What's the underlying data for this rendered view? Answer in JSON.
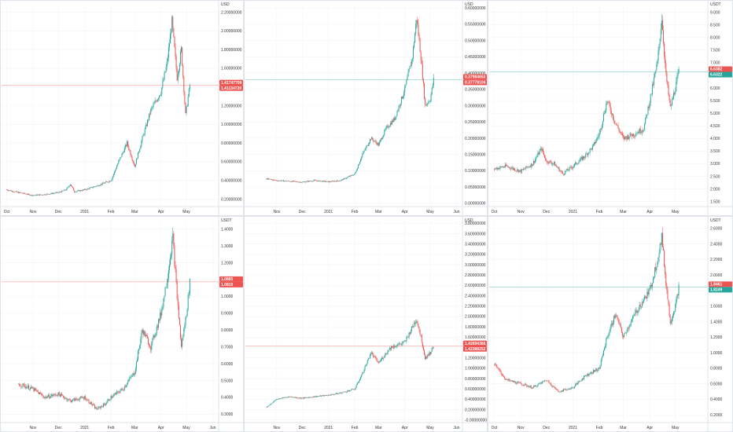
{
  "colors": {
    "up": "#26a69a",
    "down": "#ef5350",
    "tag_red": "#ef5350",
    "tag_green": "#26a69a",
    "divider": "#e0e3eb",
    "grid": "#f3f4f7"
  },
  "chart_data": [
    {
      "type": "candlestick",
      "unit": "USD",
      "y_ticks": [
        "0.20000000",
        "0.40000000",
        "0.60000000",
        "0.80000000",
        "1.00000000",
        "1.20000000",
        "1.40000000",
        "1.60000000",
        "1.80000000",
        "2.00000000",
        "2.20000000"
      ],
      "ylim": [
        0.12,
        2.28
      ],
      "x_ticks": [
        "Oct",
        "Nov",
        "Dec",
        "2021",
        "Feb",
        "Mar",
        "Apr",
        "May"
      ],
      "price_tags": [
        {
          "value": 1.41747709,
          "label": "1.41747709",
          "color": "red"
        },
        {
          "value": 1.4113472,
          "label": "1.41134720",
          "color": "red"
        }
      ],
      "line_color": "red",
      "series": [
        {
          "date": "2020-10-01",
          "close": 0.3
        },
        {
          "date": "2020-10-15",
          "close": 0.27
        },
        {
          "date": "2020-11-01",
          "close": 0.24
        },
        {
          "date": "2020-11-15",
          "close": 0.25
        },
        {
          "date": "2020-12-01",
          "close": 0.27
        },
        {
          "date": "2020-12-10",
          "close": 0.3
        },
        {
          "date": "2020-12-15",
          "close": 0.36
        },
        {
          "date": "2020-12-20",
          "close": 0.28
        },
        {
          "date": "2021-01-01",
          "close": 0.3
        },
        {
          "date": "2021-01-15",
          "close": 0.34
        },
        {
          "date": "2021-02-01",
          "close": 0.4
        },
        {
          "date": "2021-02-10",
          "close": 0.6
        },
        {
          "date": "2021-02-20",
          "close": 0.8
        },
        {
          "date": "2021-03-01",
          "close": 0.55
        },
        {
          "date": "2021-03-10",
          "close": 0.85
        },
        {
          "date": "2021-03-20",
          "close": 1.15
        },
        {
          "date": "2021-04-01",
          "close": 1.35
        },
        {
          "date": "2021-04-08",
          "close": 1.65
        },
        {
          "date": "2021-04-14",
          "close": 2.1
        },
        {
          "date": "2021-04-20",
          "close": 1.5
        },
        {
          "date": "2021-04-25",
          "close": 1.8
        },
        {
          "date": "2021-04-30",
          "close": 1.1
        },
        {
          "date": "2021-05-05",
          "close": 1.42
        }
      ]
    },
    {
      "type": "candlestick",
      "unit": "USD",
      "y_ticks": [
        "0.00000000",
        "0.05000000",
        "0.10000000",
        "0.15000000",
        "0.20000000",
        "0.25000000",
        "0.30000000",
        "0.35000000",
        "0.40000000",
        "0.45000000",
        "0.50000000",
        "0.55000000",
        "0.60000000"
      ],
      "ylim": [
        -0.01,
        0.61
      ],
      "x_ticks": [
        "Nov",
        "Dec",
        "2021",
        "Feb",
        "Mar",
        "Apr",
        "May",
        "Jun"
      ],
      "price_tags": [
        {
          "value": 0.37984653,
          "label": "0.37984653",
          "color": "red"
        },
        {
          "value": 0.37778104,
          "label": "0.37778104",
          "color": "red"
        }
      ],
      "line_color": "teal",
      "series": [
        {
          "date": "2020-10-20",
          "close": 0.075
        },
        {
          "date": "2020-11-01",
          "close": 0.07
        },
        {
          "date": "2020-11-15",
          "close": 0.068
        },
        {
          "date": "2020-12-01",
          "close": 0.065
        },
        {
          "date": "2020-12-15",
          "close": 0.07
        },
        {
          "date": "2021-01-01",
          "close": 0.066
        },
        {
          "date": "2021-01-15",
          "close": 0.07
        },
        {
          "date": "2021-02-01",
          "close": 0.09
        },
        {
          "date": "2021-02-10",
          "close": 0.15
        },
        {
          "date": "2021-02-20",
          "close": 0.2
        },
        {
          "date": "2021-03-01",
          "close": 0.18
        },
        {
          "date": "2021-03-10",
          "close": 0.23
        },
        {
          "date": "2021-03-20",
          "close": 0.26
        },
        {
          "date": "2021-04-01",
          "close": 0.35
        },
        {
          "date": "2021-04-10",
          "close": 0.45
        },
        {
          "date": "2021-04-15",
          "close": 0.57
        },
        {
          "date": "2021-04-20",
          "close": 0.45
        },
        {
          "date": "2021-04-25",
          "close": 0.3
        },
        {
          "date": "2021-05-01",
          "close": 0.32
        },
        {
          "date": "2021-05-05",
          "close": 0.38
        }
      ]
    },
    {
      "type": "candlestick",
      "unit": "USDT",
      "y_ticks": [
        "1.500",
        "2.000",
        "2.500",
        "3.000",
        "3.500",
        "4.000",
        "4.500",
        "5.000",
        "5.500",
        "6.000",
        "6.500",
        "7.000",
        "7.500",
        "8.000",
        "8.500",
        "9.000"
      ],
      "ylim": [
        1.3,
        9.3
      ],
      "x_ticks": [
        "Oct",
        "Nov",
        "Dec",
        "2021",
        "Feb",
        "Mar",
        "Apr",
        "May"
      ],
      "price_tags": [
        {
          "value": 6.6382,
          "label": "6.6382",
          "color": "red"
        },
        {
          "value": 6.6322,
          "label": "6.6322",
          "color": "green"
        }
      ],
      "line_color": "teal",
      "series": [
        {
          "date": "2020-10-01",
          "close": 2.8
        },
        {
          "date": "2020-10-15",
          "close": 2.9
        },
        {
          "date": "2020-11-01",
          "close": 2.7
        },
        {
          "date": "2020-11-15",
          "close": 3.0
        },
        {
          "date": "2020-11-25",
          "close": 3.6
        },
        {
          "date": "2020-12-01",
          "close": 3.1
        },
        {
          "date": "2020-12-10",
          "close": 3.0
        },
        {
          "date": "2020-12-20",
          "close": 2.6
        },
        {
          "date": "2021-01-01",
          "close": 2.9
        },
        {
          "date": "2021-01-15",
          "close": 3.3
        },
        {
          "date": "2021-01-25",
          "close": 3.7
        },
        {
          "date": "2021-02-01",
          "close": 4.2
        },
        {
          "date": "2021-02-10",
          "close": 5.5
        },
        {
          "date": "2021-02-20",
          "close": 4.6
        },
        {
          "date": "2021-03-01",
          "close": 4.0
        },
        {
          "date": "2021-03-15",
          "close": 4.2
        },
        {
          "date": "2021-03-25",
          "close": 4.4
        },
        {
          "date": "2021-04-01",
          "close": 5.5
        },
        {
          "date": "2021-04-10",
          "close": 7.0
        },
        {
          "date": "2021-04-15",
          "close": 8.8
        },
        {
          "date": "2021-04-20",
          "close": 6.5
        },
        {
          "date": "2021-04-25",
          "close": 5.2
        },
        {
          "date": "2021-05-01",
          "close": 6.0
        },
        {
          "date": "2021-05-05",
          "close": 6.63
        }
      ]
    },
    {
      "type": "candlestick",
      "unit": "USDT",
      "y_ticks": [
        "0.3000",
        "0.4000",
        "0.5000",
        "0.6000",
        "0.7000",
        "0.8000",
        "0.9000",
        "1.0000",
        "1.1000",
        "1.2000",
        "1.3000",
        "1.4000"
      ],
      "ylim": [
        0.25,
        1.45
      ],
      "x_ticks": [
        "Nov",
        "Dec",
        "2021",
        "Feb",
        "Mar",
        "Apr",
        "May",
        "Jun"
      ],
      "price_tags": [
        {
          "value": 1.0865,
          "label": "1.0865",
          "color": "red"
        },
        {
          "value": 1.0819,
          "label": "1.0819",
          "color": "red"
        }
      ],
      "line_color": "red",
      "series": [
        {
          "date": "2020-10-15",
          "close": 0.48
        },
        {
          "date": "2020-11-01",
          "close": 0.45
        },
        {
          "date": "2020-11-15",
          "close": 0.4
        },
        {
          "date": "2020-12-01",
          "close": 0.42
        },
        {
          "date": "2020-12-15",
          "close": 0.38
        },
        {
          "date": "2021-01-01",
          "close": 0.4
        },
        {
          "date": "2021-01-15",
          "close": 0.33
        },
        {
          "date": "2021-01-25",
          "close": 0.36
        },
        {
          "date": "2021-02-01",
          "close": 0.4
        },
        {
          "date": "2021-02-15",
          "close": 0.45
        },
        {
          "date": "2021-03-01",
          "close": 0.55
        },
        {
          "date": "2021-03-10",
          "close": 0.8
        },
        {
          "date": "2021-03-20",
          "close": 0.7
        },
        {
          "date": "2021-04-01",
          "close": 0.9
        },
        {
          "date": "2021-04-08",
          "close": 1.1
        },
        {
          "date": "2021-04-15",
          "close": 1.35
        },
        {
          "date": "2021-04-20",
          "close": 1.0
        },
        {
          "date": "2021-04-25",
          "close": 0.7
        },
        {
          "date": "2021-05-01",
          "close": 0.9
        },
        {
          "date": "2021-05-05",
          "close": 1.08
        }
      ]
    },
    {
      "type": "candlestick",
      "unit": "USD",
      "y_ticks": [
        "-0.00000000",
        "0.20000000",
        "0.40000000",
        "0.60000000",
        "0.80000000",
        "1.00000000",
        "1.20000000",
        "1.40000000",
        "1.60000000",
        "1.80000000",
        "2.00000000",
        "2.20000000",
        "2.40000000",
        "2.60000000",
        "2.80000000",
        "3.00000000",
        "3.20000000",
        "3.40000000",
        "3.60000000",
        "3.80000000"
      ],
      "ylim": [
        -0.05,
        3.85
      ],
      "x_ticks": [
        "Nov",
        "Dec",
        "2021",
        "Feb",
        "Mar",
        "Apr",
        "May",
        "Jun"
      ],
      "price_tags": [
        {
          "value": 1.42694366,
          "label": "1.42694366",
          "color": "red"
        },
        {
          "value": 1.42388252,
          "label": "1.42388252",
          "color": "red"
        }
      ],
      "line_color": "red",
      "series": [
        {
          "date": "2020-10-20",
          "close": 0.25
        },
        {
          "date": "2020-11-01",
          "close": 0.4
        },
        {
          "date": "2020-11-15",
          "close": 0.45
        },
        {
          "date": "2020-12-01",
          "close": 0.42
        },
        {
          "date": "2020-12-15",
          "close": 0.45
        },
        {
          "date": "2021-01-01",
          "close": 0.48
        },
        {
          "date": "2021-01-15",
          "close": 0.52
        },
        {
          "date": "2021-02-01",
          "close": 0.6
        },
        {
          "date": "2021-02-10",
          "close": 0.9
        },
        {
          "date": "2021-02-20",
          "close": 1.3
        },
        {
          "date": "2021-03-01",
          "close": 1.1
        },
        {
          "date": "2021-03-15",
          "close": 1.4
        },
        {
          "date": "2021-04-01",
          "close": 1.5
        },
        {
          "date": "2021-04-10",
          "close": 1.8
        },
        {
          "date": "2021-04-15",
          "close": 1.95
        },
        {
          "date": "2021-04-20",
          "close": 1.6
        },
        {
          "date": "2021-04-25",
          "close": 1.2
        },
        {
          "date": "2021-05-01",
          "close": 1.3
        },
        {
          "date": "2021-05-05",
          "close": 1.43
        }
      ]
    },
    {
      "type": "candlestick",
      "unit": "USDT",
      "y_ticks": [
        "0.2000",
        "0.4000",
        "0.6000",
        "0.8000",
        "1.0000",
        "1.2000",
        "1.4000",
        "1.6000",
        "1.8000",
        "2.0000",
        "2.2000",
        "2.4000",
        "2.6000"
      ],
      "ylim": [
        0.1,
        2.7
      ],
      "x_ticks": [
        "Oct",
        "Nov",
        "Dec",
        "2021",
        "Feb",
        "Mar",
        "Apr",
        "May"
      ],
      "price_tags": [
        {
          "value": 1.8461,
          "label": "1.8461",
          "color": "red"
        },
        {
          "value": 1.8249,
          "label": "1.8249",
          "color": "green"
        }
      ],
      "line_color": "teal",
      "series": [
        {
          "date": "2020-10-01",
          "close": 0.85
        },
        {
          "date": "2020-10-15",
          "close": 0.65
        },
        {
          "date": "2020-11-01",
          "close": 0.6
        },
        {
          "date": "2020-11-15",
          "close": 0.55
        },
        {
          "date": "2020-12-01",
          "close": 0.65
        },
        {
          "date": "2020-12-15",
          "close": 0.5
        },
        {
          "date": "2021-01-01",
          "close": 0.55
        },
        {
          "date": "2021-01-15",
          "close": 0.7
        },
        {
          "date": "2021-02-01",
          "close": 0.8
        },
        {
          "date": "2021-02-10",
          "close": 1.2
        },
        {
          "date": "2021-02-20",
          "close": 1.5
        },
        {
          "date": "2021-03-01",
          "close": 1.2
        },
        {
          "date": "2021-03-10",
          "close": 1.4
        },
        {
          "date": "2021-03-20",
          "close": 1.6
        },
        {
          "date": "2021-04-01",
          "close": 1.8
        },
        {
          "date": "2021-04-10",
          "close": 2.2
        },
        {
          "date": "2021-04-15",
          "close": 2.5
        },
        {
          "date": "2021-04-20",
          "close": 1.9
        },
        {
          "date": "2021-04-25",
          "close": 1.4
        },
        {
          "date": "2021-05-01",
          "close": 1.6
        },
        {
          "date": "2021-05-05",
          "close": 1.84
        }
      ]
    }
  ]
}
